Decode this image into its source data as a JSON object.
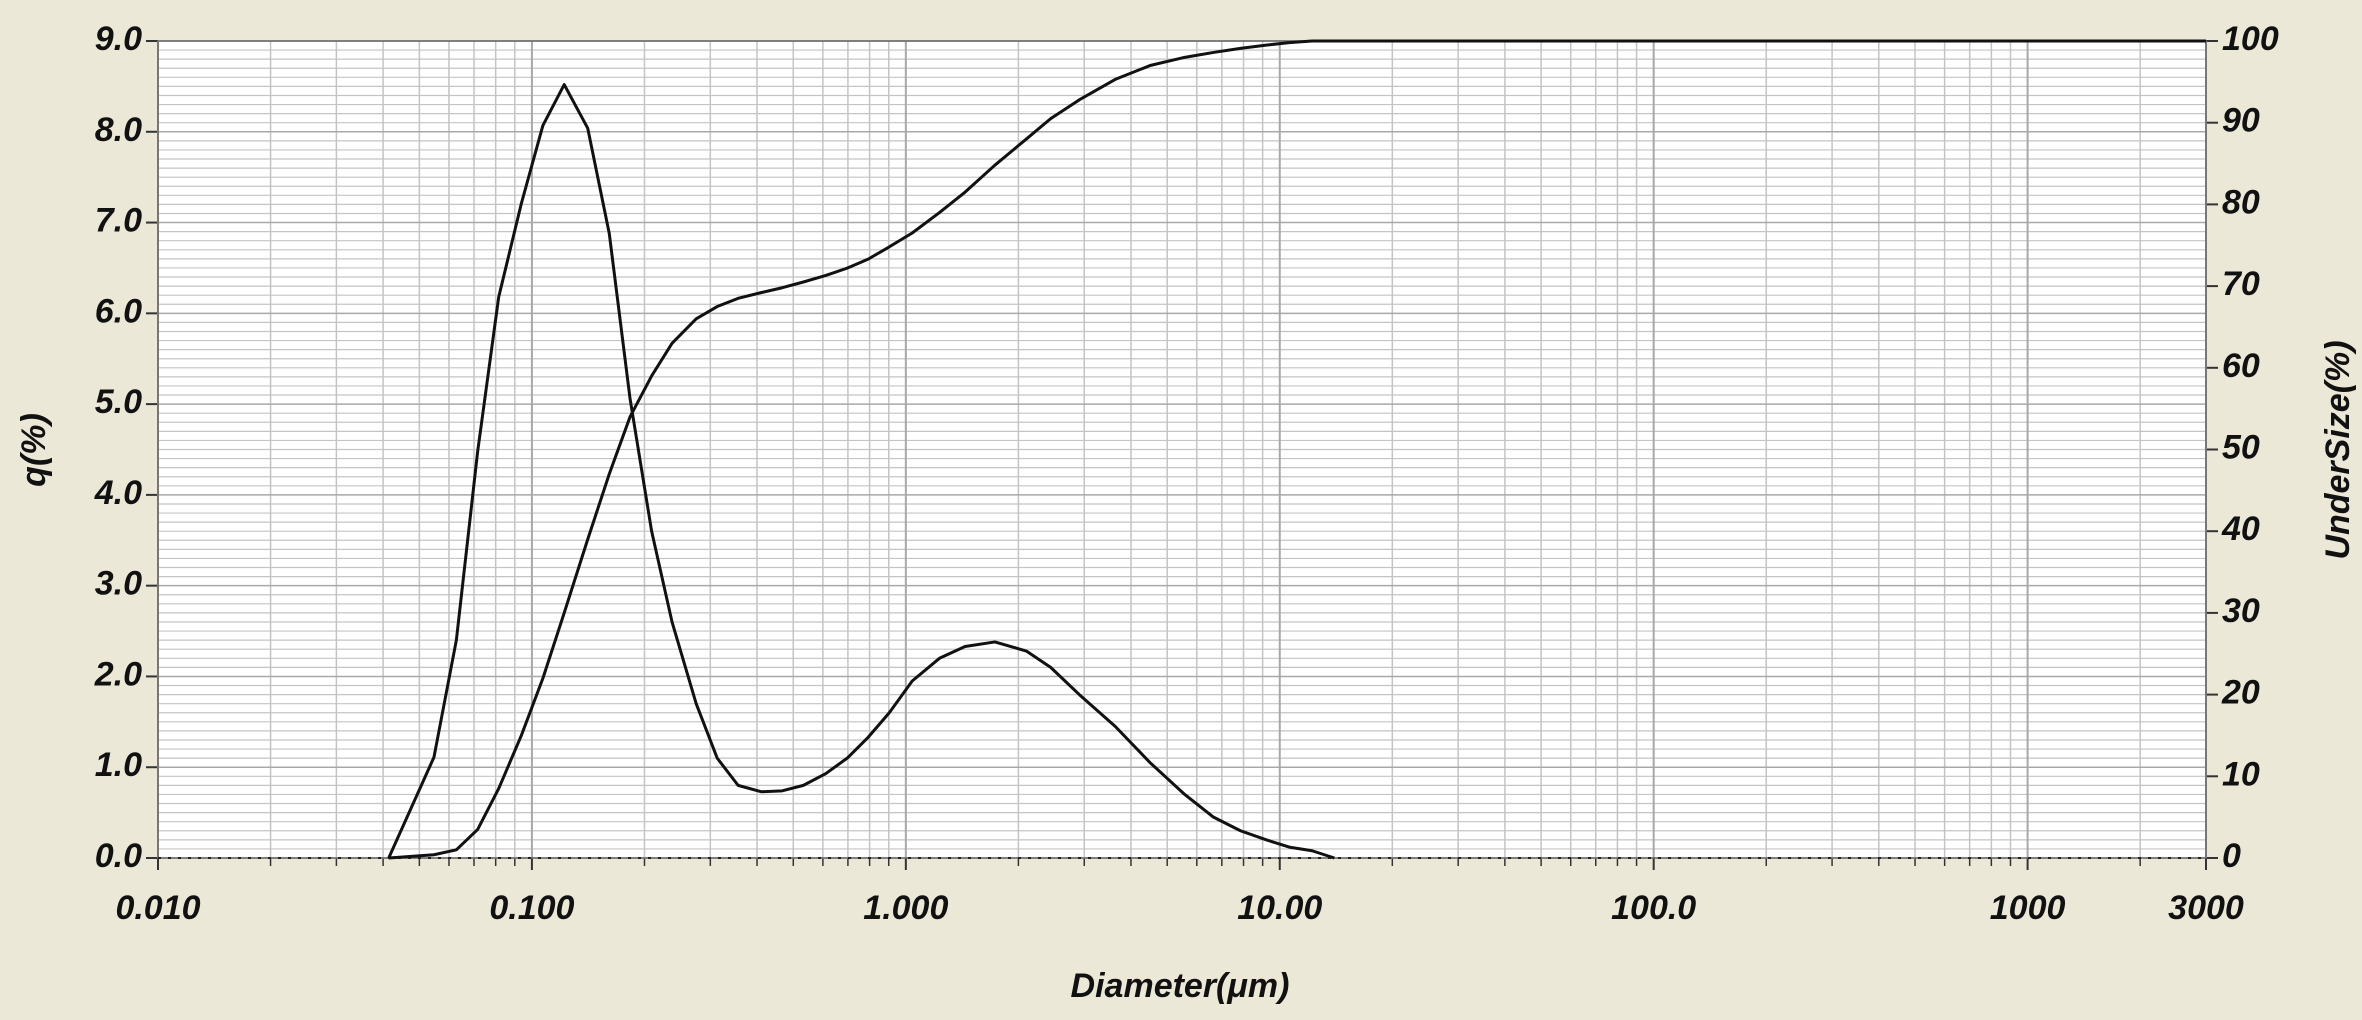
{
  "chart_data": {
    "type": "line",
    "xlabel": "Diameter(μm)",
    "ylabel": "q(%)",
    "y2label": "UnderSize(%)",
    "x_scale": "log",
    "grid": true,
    "minor_grid": true,
    "xlim": [
      0.01,
      3000
    ],
    "xticks": [
      {
        "value": 0.01,
        "label": "0.010"
      },
      {
        "value": 0.1,
        "label": "0.100"
      },
      {
        "value": 1,
        "label": "1.000"
      },
      {
        "value": 10,
        "label": "10.00"
      },
      {
        "value": 100,
        "label": "100.0"
      },
      1000,
      3000
    ],
    "ylim": [
      0,
      9
    ],
    "yticks": [
      {
        "value": 0,
        "label": "0.0"
      },
      {
        "value": 1,
        "label": "1.0"
      },
      {
        "value": 2,
        "label": "2.0"
      },
      {
        "value": 3,
        "label": "3.0"
      },
      {
        "value": 4,
        "label": "4.0"
      },
      {
        "value": 5,
        "label": "5.0"
      },
      {
        "value": 6,
        "label": "6.0"
      },
      {
        "value": 7,
        "label": "7.0"
      },
      {
        "value": 8,
        "label": "8.0"
      },
      {
        "value": 9,
        "label": "9.0"
      }
    ],
    "y2lim": [
      0,
      100
    ],
    "y2ticks": [
      0,
      10,
      20,
      30,
      40,
      50,
      60,
      70,
      80,
      90,
      100
    ],
    "x": [
      0.0414,
      0.0547,
      0.0628,
      0.0716,
      0.0815,
      0.0937,
      0.107,
      0.122,
      0.141,
      0.161,
      0.183,
      0.209,
      0.237,
      0.275,
      0.313,
      0.356,
      0.41,
      0.467,
      0.532,
      0.611,
      0.697,
      0.793,
      0.903,
      1.04,
      1.23,
      1.44,
      1.73,
      2.1,
      2.44,
      2.91,
      3.63,
      4.5,
      5.57,
      6.65,
      7.85,
      9.2,
      10.6,
      12.2,
      14.0,
      3000
    ],
    "series": [
      {
        "color": "#111111",
        "values": [
          0,
          1.11,
          2.4,
          4.48,
          6.18,
          7.21,
          8.07,
          8.52,
          8.04,
          6.88,
          5.06,
          3.6,
          2.6,
          1.7,
          1.1,
          0.8,
          0.73,
          0.74,
          0.8,
          0.93,
          1.1,
          1.33,
          1.6,
          1.95,
          2.2,
          2.33,
          2.38,
          2.28,
          2.1,
          1.8,
          1.45,
          1.05,
          0.7,
          0.45,
          0.3,
          0.2,
          0.12,
          0.08,
          0,
          null
        ]
      },
      {
        "color": "#111111",
        "axis": "y2",
        "values": [
          0,
          0.4,
          1,
          3.5,
          8.5,
          15,
          22,
          30,
          39,
          47,
          54,
          59,
          63,
          66,
          67.5,
          68.5,
          69.2,
          69.8,
          70.5,
          71.3,
          72.2,
          73.3,
          74.8,
          76.5,
          79,
          81.5,
          84.8,
          88,
          90.5,
          92.8,
          95.3,
          97,
          98,
          98.6,
          99.1,
          99.5,
          99.8,
          100,
          100,
          100
        ]
      }
    ]
  }
}
